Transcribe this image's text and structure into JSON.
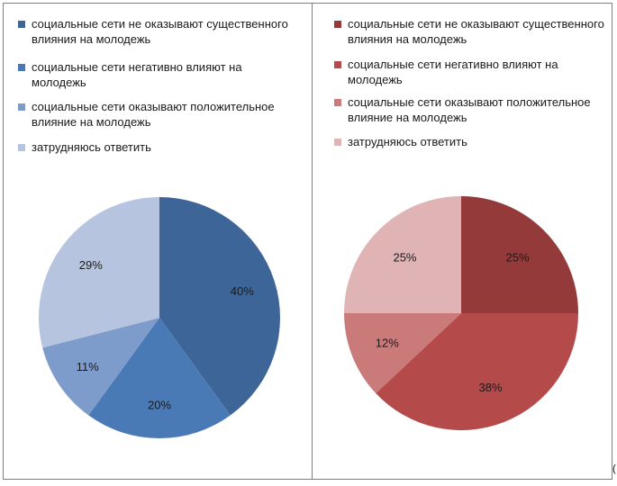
{
  "stray_mark": "(",
  "chart_data": [
    {
      "type": "pie",
      "title": "",
      "legend_position": "top",
      "start_angle": "top, clockwise",
      "categories": [
        "социальные сети не оказывают существенного влияния на молодежь",
        "социальные сети негативно влияют на молодежь",
        "социальные сети оказывают положительное влияние на молодежь",
        "затрудняюсь ответить"
      ],
      "values": [
        40,
        20,
        11,
        29
      ],
      "labels": [
        "40%",
        "20%",
        "11%",
        "29%"
      ],
      "colors": [
        "#3e6598",
        "#4a7ab5",
        "#7e9ccb",
        "#b6c4df"
      ]
    },
    {
      "type": "pie",
      "title": "",
      "legend_position": "top",
      "start_angle": "top, clockwise",
      "categories": [
        "социальные сети не оказывают существенного влияния на молодежь",
        "социальные сети негативно влияют на молодежь",
        "социальные сети оказывают положительное влияние на молодежь",
        "затрудняюсь ответить"
      ],
      "values": [
        25,
        38,
        12,
        25
      ],
      "labels": [
        "25%",
        "38%",
        "12%",
        "25%"
      ],
      "colors": [
        "#953a3a",
        "#b44a4a",
        "#cb7a7a",
        "#e0b4b4"
      ]
    }
  ]
}
